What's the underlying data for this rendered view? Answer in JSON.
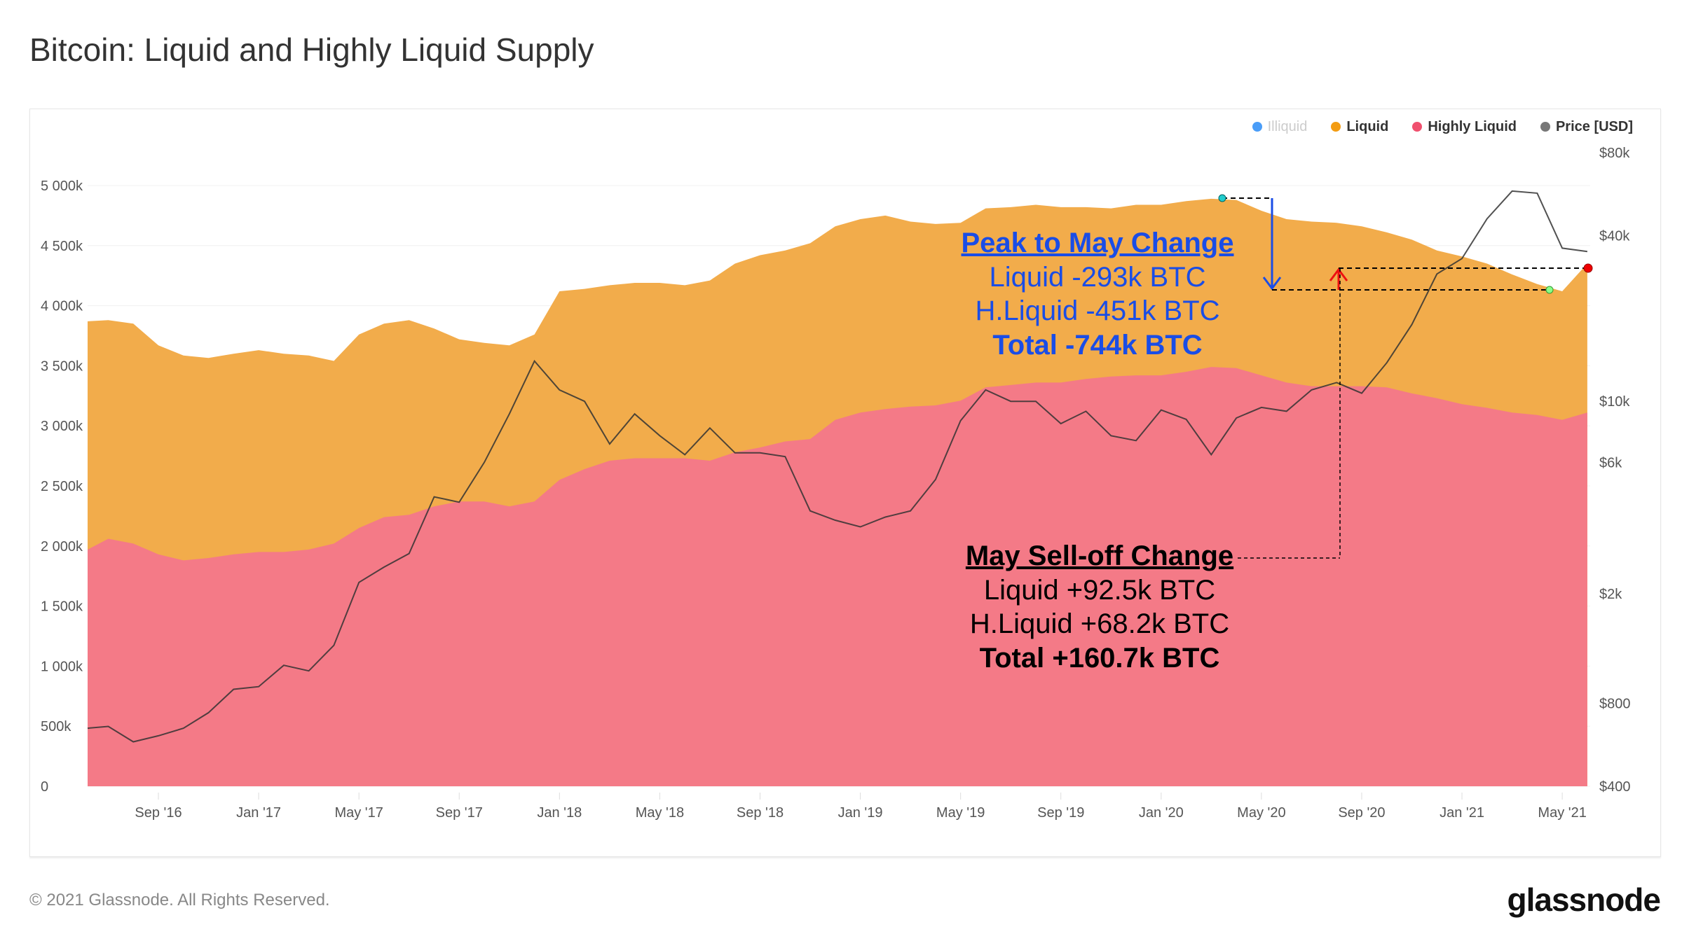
{
  "title": "Bitcoin: Liquid and Highly Liquid Supply",
  "footer": "© 2021 Glassnode. All Rights Reserved.",
  "logo": "glassnode",
  "watermark": "glassnode",
  "colors": {
    "liquid": "#f2ac4b",
    "highly_liquid": "#f47a87",
    "illiquid": "#4a9df8",
    "price": "#333333",
    "annotation_blue": "#1a4de6",
    "arrow_red": "#ee1111"
  },
  "annotations": {
    "peak": {
      "heading": "Peak to May Change",
      "liquid": "Liquid -293k BTC",
      "hliquid": "H.Liquid -451k BTC",
      "total": "Total -744k BTC"
    },
    "selloff": {
      "heading": "May Sell-off Change",
      "liquid": "Liquid +92.5k BTC",
      "hliquid": "H.Liquid +68.2k BTC",
      "total": "Total +160.7k BTC"
    }
  },
  "chart_data": {
    "type": "area",
    "title": "Bitcoin: Liquid and Highly Liquid Supply",
    "legend": [
      {
        "name": "Illiquid",
        "hidden": true
      },
      {
        "name": "Liquid"
      },
      {
        "name": "Highly Liquid"
      },
      {
        "name": "Price [USD]"
      }
    ],
    "legend_position": "top-right",
    "x_start": "Jun 2016",
    "x_step": "month",
    "x_ticks": [
      "Sep '16",
      "Jan '17",
      "May '17",
      "Sep '17",
      "Jan '18",
      "May '18",
      "Sep '18",
      "Jan '19",
      "May '19",
      "Sep '19",
      "Jan '20",
      "May '20",
      "Sep '20",
      "Jan '21",
      "May '21"
    ],
    "y_ticks": [
      "0",
      "500k",
      "1 000k",
      "1 500k",
      "2 000k",
      "2 500k",
      "3 000k",
      "3 500k",
      "4 000k",
      "4 500k",
      "5 000k"
    ],
    "y_range": [
      0,
      5000
    ],
    "y_unit": "k BTC",
    "y2_ticks": [
      {
        "label": "$400",
        "v": 400
      },
      {
        "label": "$800",
        "v": 800
      },
      {
        "label": "$2k",
        "v": 2000
      },
      {
        "label": "$6k",
        "v": 6000
      },
      {
        "label": "$10k",
        "v": 10000
      },
      {
        "label": "$40k",
        "v": 40000
      },
      {
        "label": "$80k",
        "v": 80000
      }
    ],
    "y2_scale": "log",
    "y2_range": [
      400,
      80000
    ],
    "series": [
      {
        "name": "Liquid + Highly Liquid (stack top)",
        "values": [
          3870,
          3880,
          3850,
          3670,
          3585,
          3565,
          3600,
          3630,
          3600,
          3585,
          3540,
          3760,
          3850,
          3880,
          3810,
          3720,
          3690,
          3670,
          3760,
          4120,
          4140,
          4170,
          4190,
          4190,
          4170,
          4210,
          4350,
          4420,
          4460,
          4520,
          4660,
          4720,
          4750,
          4700,
          4680,
          4690,
          4810,
          4820,
          4840,
          4820,
          4820,
          4810,
          4840,
          4840,
          4870,
          4890,
          4880,
          4790,
          4720,
          4700,
          4690,
          4660,
          4610,
          4550,
          4460,
          4410,
          4350,
          4260,
          4180,
          4120,
          4350
        ]
      },
      {
        "name": "Highly Liquid",
        "values": [
          1970,
          2060,
          2020,
          1930,
          1880,
          1900,
          1930,
          1950,
          1950,
          1970,
          2020,
          2150,
          2240,
          2260,
          2330,
          2370,
          2370,
          2330,
          2370,
          2550,
          2640,
          2710,
          2730,
          2730,
          2730,
          2710,
          2780,
          2820,
          2870,
          2890,
          3050,
          3110,
          3140,
          3160,
          3170,
          3210,
          3320,
          3340,
          3360,
          3360,
          3390,
          3410,
          3420,
          3420,
          3450,
          3490,
          3480,
          3420,
          3360,
          3330,
          3330,
          3330,
          3320,
          3270,
          3230,
          3180,
          3150,
          3110,
          3090,
          3050,
          3110
        ]
      },
      {
        "name": "Price [USD]",
        "values": [
          650,
          660,
          580,
          610,
          650,
          740,
          900,
          920,
          1100,
          1050,
          1300,
          2200,
          2500,
          2800,
          4500,
          4300,
          6000,
          9000,
          14000,
          11000,
          10000,
          7000,
          9000,
          7500,
          6400,
          8000,
          6500,
          6500,
          6300,
          4000,
          3700,
          3500,
          3800,
          4000,
          5200,
          8500,
          11000,
          10000,
          10000,
          8300,
          9200,
          7500,
          7200,
          9300,
          8600,
          6400,
          8700,
          9500,
          9200,
          11000,
          11700,
          10700,
          13800,
          19000,
          29000,
          33000,
          46000,
          58000,
          57000,
          36000,
          35000
        ]
      }
    ]
  }
}
